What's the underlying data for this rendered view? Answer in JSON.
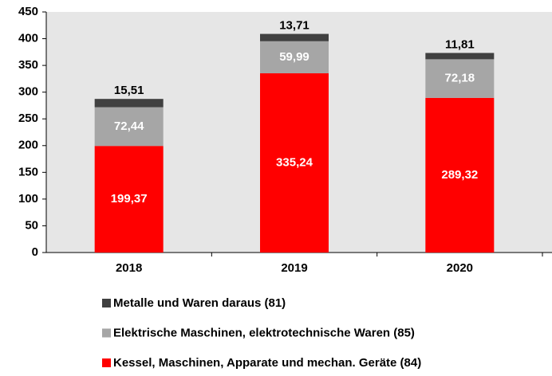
{
  "chart_data": {
    "type": "stacked_bar",
    "categories": [
      "2018",
      "2019",
      "2020"
    ],
    "series": [
      {
        "name": "Kessel, Maschinen, Apparate und mechan. Geräte (84)",
        "color": "#ff0000",
        "values": [
          199.37,
          335.24,
          289.32
        ],
        "value_labels": [
          "199,37",
          "335,24",
          "289,32"
        ]
      },
      {
        "name": "Elektrische Maschinen, elektrotechnische Waren (85)",
        "color": "#a6a6a6",
        "values": [
          72.44,
          59.99,
          72.18
        ],
        "value_labels": [
          "72,44",
          "59,99",
          "72,18"
        ]
      },
      {
        "name": "Metalle und Waren daraus (81)",
        "color": "#404040",
        "values": [
          15.51,
          13.71,
          11.81
        ],
        "value_labels": [
          "15,51",
          "13,71",
          "11,81"
        ]
      }
    ],
    "ylim": [
      0,
      450
    ],
    "yticks": [
      0,
      50,
      100,
      150,
      200,
      250,
      300,
      350,
      400,
      450
    ]
  }
}
